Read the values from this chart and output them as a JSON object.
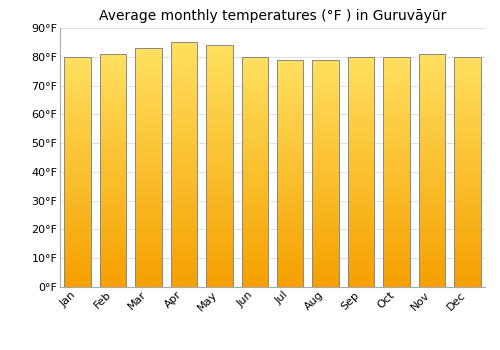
{
  "title": "Average monthly temperatures (°F ) in Guruvāyūr",
  "months": [
    "Jan",
    "Feb",
    "Mar",
    "Apr",
    "May",
    "Jun",
    "Jul",
    "Aug",
    "Sep",
    "Oct",
    "Nov",
    "Dec"
  ],
  "values": [
    80,
    81,
    83,
    85,
    84,
    80,
    79,
    79,
    80,
    80,
    81,
    80
  ],
  "ylim": [
    0,
    90
  ],
  "yticks": [
    0,
    10,
    20,
    30,
    40,
    50,
    60,
    70,
    80,
    90
  ],
  "ytick_labels": [
    "0°F",
    "10°F",
    "20°F",
    "30°F",
    "40°F",
    "50°F",
    "60°F",
    "70°F",
    "80°F",
    "90°F"
  ],
  "bg_color": "#ffffff",
  "grid_color": "#e0e0e8",
  "title_fontsize": 10,
  "tick_fontsize": 8,
  "bar_color_top": "#FFE060",
  "bar_color_bottom": "#F5A000",
  "bar_edge_color": "#888888",
  "bar_width": 0.75,
  "n_gradient_steps": 60
}
